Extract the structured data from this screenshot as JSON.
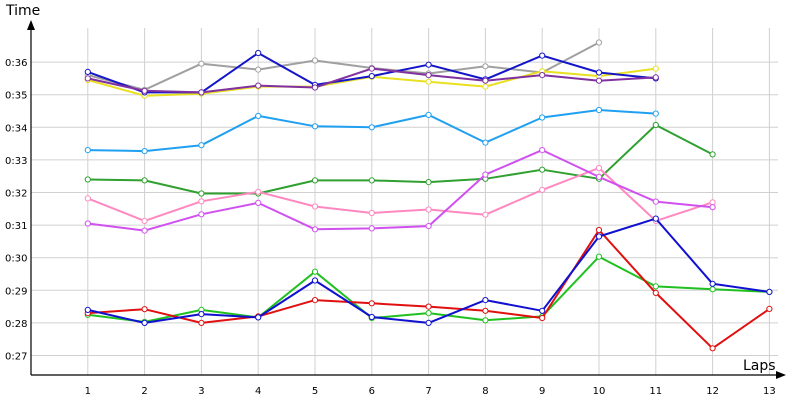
{
  "chart_data": {
    "type": "line",
    "xlabel": "Laps",
    "ylabel": "Time",
    "x": [
      1,
      2,
      3,
      4,
      5,
      6,
      7,
      8,
      9,
      10,
      11,
      12,
      13
    ],
    "x_tick_labels": [
      "1",
      "2",
      "3",
      "4",
      "5",
      "6",
      "7",
      "8",
      "9",
      "10",
      "11",
      "12",
      "13"
    ],
    "y_ticks": [
      27,
      28,
      29,
      30,
      31,
      32,
      33,
      34,
      35,
      36
    ],
    "y_tick_labels": [
      "0:27",
      "0:28",
      "0:29",
      "0:30",
      "0:31",
      "0:32",
      "0:33",
      "0:34",
      "0:35",
      "0:36"
    ],
    "xlim": [
      0,
      13.5
    ],
    "ylim": [
      26.5,
      37.75
    ],
    "grid": true,
    "legend": "none",
    "series": [
      {
        "color": "#a0a0a0",
        "values": [
          35.6,
          35.15,
          35.95,
          35.77,
          36.05,
          35.82,
          35.65,
          35.87,
          35.68,
          36.6,
          null,
          null,
          null
        ]
      },
      {
        "color": "#e8e020",
        "values": [
          35.45,
          34.97,
          35.03,
          35.25,
          35.25,
          35.55,
          35.4,
          35.25,
          35.72,
          35.57,
          35.8,
          null,
          null
        ]
      },
      {
        "color": "#1414c8",
        "values": [
          35.7,
          35.07,
          35.07,
          36.28,
          35.3,
          35.57,
          35.92,
          35.47,
          36.2,
          35.68,
          35.5,
          null,
          null
        ]
      },
      {
        "color": "#8030a0",
        "values": [
          35.5,
          35.12,
          35.07,
          35.28,
          35.22,
          35.8,
          35.6,
          35.43,
          35.6,
          35.43,
          35.53,
          null,
          null
        ]
      },
      {
        "color": "#20a0f0",
        "values": [
          33.3,
          33.27,
          33.45,
          34.35,
          34.03,
          34.0,
          34.38,
          33.53,
          34.3,
          34.53,
          34.42,
          null,
          null
        ]
      },
      {
        "color": "#30a030",
        "values": [
          32.4,
          32.37,
          31.97,
          31.97,
          32.37,
          32.37,
          32.32,
          32.42,
          32.7,
          32.42,
          34.07,
          33.17,
          null
        ]
      },
      {
        "color": "#ff88c0",
        "values": [
          31.82,
          31.13,
          31.73,
          32.02,
          31.57,
          31.37,
          31.48,
          31.32,
          32.08,
          32.75,
          31.13,
          31.7,
          null
        ]
      },
      {
        "color": "#d050f0",
        "values": [
          31.05,
          30.83,
          31.33,
          31.68,
          30.87,
          30.9,
          30.97,
          32.55,
          33.3,
          32.48,
          31.72,
          31.55,
          null
        ]
      },
      {
        "color": "#20c020",
        "values": [
          28.25,
          28.03,
          28.4,
          28.17,
          29.57,
          28.15,
          28.3,
          28.08,
          28.2,
          30.03,
          29.12,
          29.03,
          28.95
        ]
      },
      {
        "color": "#e01010",
        "values": [
          28.3,
          28.42,
          28.0,
          28.2,
          28.7,
          28.6,
          28.5,
          28.37,
          28.15,
          30.85,
          28.92,
          27.22,
          28.43
        ]
      },
      {
        "color": "#1010d0",
        "values": [
          28.4,
          28.0,
          28.27,
          28.17,
          29.3,
          28.18,
          28.0,
          28.7,
          28.37,
          30.65,
          31.2,
          29.2,
          28.95
        ]
      }
    ]
  }
}
